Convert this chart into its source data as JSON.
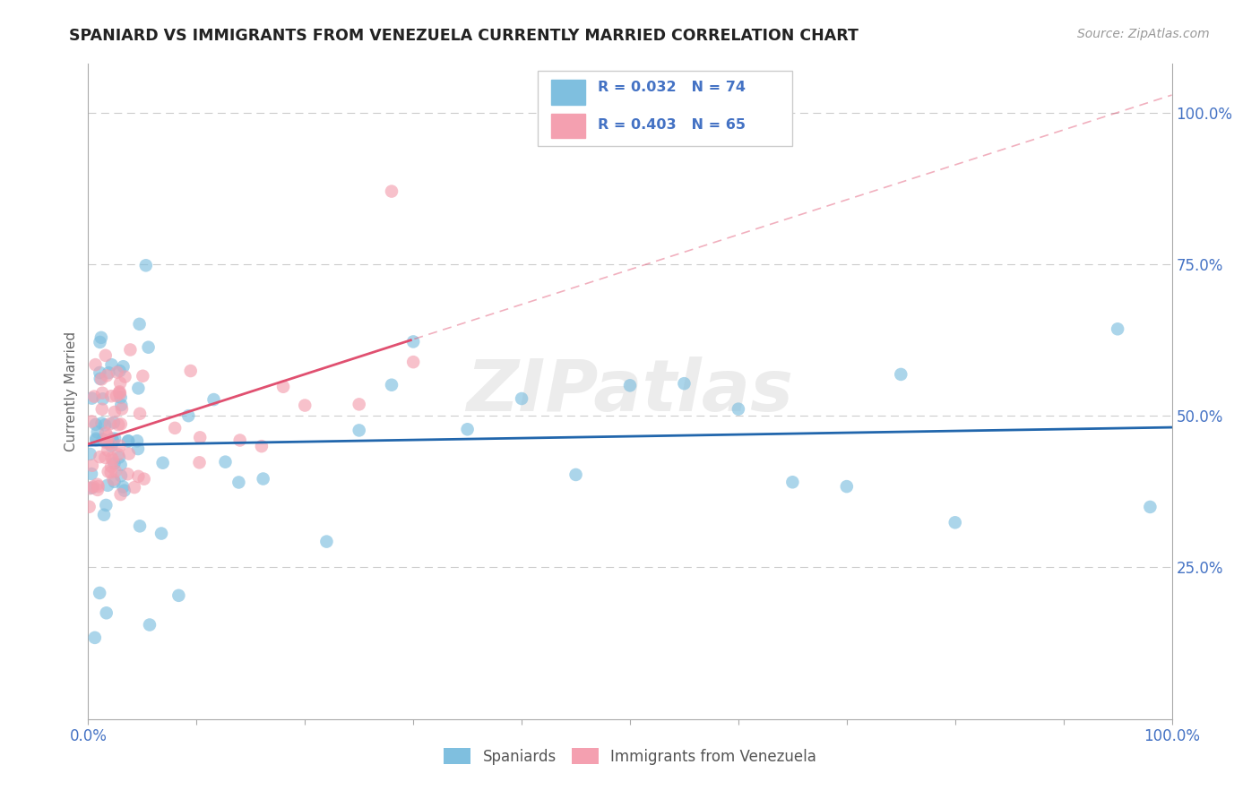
{
  "title": "SPANIARD VS IMMIGRANTS FROM VENEZUELA CURRENTLY MARRIED CORRELATION CHART",
  "source": "Source: ZipAtlas.com",
  "ylabel": "Currently Married",
  "legend_label1": "Spaniards",
  "legend_label2": "Immigrants from Venezuela",
  "R1": 0.032,
  "N1": 74,
  "R2": 0.403,
  "N2": 65,
  "color1": "#7fbfdf",
  "color2": "#f4a0b0",
  "trendline1_color": "#2166ac",
  "trendline2_color": "#e05070",
  "trendline_dash_color": "#ccaaaa",
  "watermark": "ZIPatlas",
  "background_color": "#ffffff",
  "grid_color": "#cccccc",
  "axis_label_color": "#4472c4",
  "title_color": "#222222",
  "tick_label_color": "#4472c4"
}
